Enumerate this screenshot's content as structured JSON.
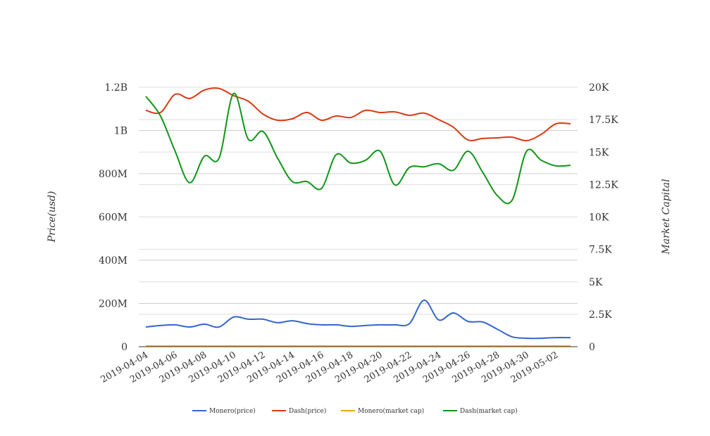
{
  "chart_data": {
    "type": "line",
    "title": "",
    "ylabel": "Price(usd)",
    "y2label": "Market Capital",
    "ylim": [
      0,
      1200000000
    ],
    "y2lim": [
      0,
      20000
    ],
    "yticks": [
      "0",
      "200M",
      "400M",
      "600M",
      "800M",
      "1B",
      "1.2B"
    ],
    "y2ticks": [
      "0",
      "2.5K",
      "5K",
      "7.5K",
      "10K",
      "12.5K",
      "15K",
      "17.5K",
      "20K"
    ],
    "xticks": [
      "2019-04-04",
      "2019-04-06",
      "2019-04-08",
      "2019-04-10",
      "2019-04-12",
      "2019-04-14",
      "2019-04-16",
      "2019-04-18",
      "2019-04-20",
      "2019-04-22",
      "2019-04-24",
      "2019-04-26",
      "2019-04-28",
      "2019-04-30",
      "2019-05-02"
    ],
    "x": [
      "2019-04-04",
      "2019-04-05",
      "2019-04-06",
      "2019-04-07",
      "2019-04-08",
      "2019-04-09",
      "2019-04-10",
      "2019-04-11",
      "2019-04-12",
      "2019-04-13",
      "2019-04-14",
      "2019-04-15",
      "2019-04-16",
      "2019-04-17",
      "2019-04-18",
      "2019-04-19",
      "2019-04-20",
      "2019-04-21",
      "2019-04-22",
      "2019-04-23",
      "2019-04-24",
      "2019-04-25",
      "2019-04-26",
      "2019-04-27",
      "2019-04-28",
      "2019-04-29",
      "2019-04-30",
      "2019-05-01",
      "2019-05-02",
      "2019-05-03"
    ],
    "legend_position": "bottom",
    "grid": true,
    "series_units": "left axis, millions",
    "series": [
      {
        "name": "Monero(price)",
        "color": "#3366cc",
        "values": [
          91,
          98,
          101,
          91,
          104,
          91,
          137,
          127,
          127,
          111,
          120,
          107,
          101,
          101,
          94,
          98,
          101,
          101,
          107,
          215,
          124,
          156,
          117,
          114,
          81,
          46,
          39,
          39,
          42,
          42
        ]
      },
      {
        "name": "Dash(price)",
        "color": "#dc3912",
        "values": [
          1093,
          1083,
          1167,
          1148,
          1187,
          1194,
          1161,
          1135,
          1076,
          1047,
          1054,
          1083,
          1047,
          1067,
          1060,
          1093,
          1083,
          1086,
          1070,
          1080,
          1050,
          1015,
          956,
          963,
          966,
          969,
          953,
          982,
          1031,
          1031
        ]
      },
      {
        "name": "Monero(market cap)",
        "color": "#f0a800",
        "values": [
          3,
          3,
          3,
          3,
          3,
          3,
          3,
          3,
          3,
          3,
          3,
          3,
          3,
          3,
          3,
          3,
          3,
          3,
          3,
          3,
          3,
          3,
          3,
          3,
          3,
          3,
          3,
          3,
          3,
          3
        ]
      },
      {
        "name": "Dash(market cap)",
        "color": "#109618",
        "values": [
          1158,
          1067,
          904,
          758,
          881,
          872,
          1171,
          959,
          995,
          872,
          764,
          764,
          732,
          888,
          849,
          862,
          904,
          748,
          829,
          832,
          846,
          816,
          904,
          807,
          699,
          676,
          904,
          862,
          836,
          839
        ]
      }
    ]
  }
}
